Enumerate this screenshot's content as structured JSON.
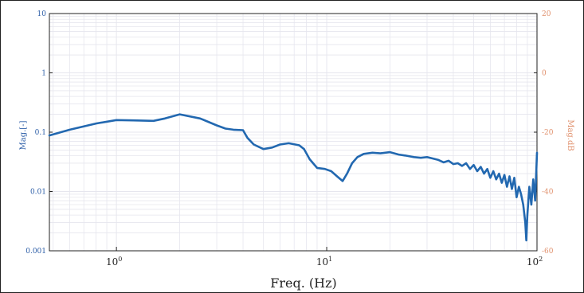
{
  "chart_data": {
    "type": "line",
    "title": "",
    "xlabel": "Freq. (Hz)",
    "ylabel_left": "Mag.[-]",
    "ylabel_right": "Mag.dB",
    "x_scale": "log",
    "y_scale_left": "log",
    "xlim": [
      0.48,
      100
    ],
    "ylim_left": [
      0.001,
      10
    ],
    "ylim_right": [
      -60,
      20
    ],
    "grid": true,
    "x_ticks": [
      {
        "value": 1,
        "base": "10",
        "exp": "0"
      },
      {
        "value": 10,
        "base": "10",
        "exp": "1"
      },
      {
        "value": 100,
        "base": "10",
        "exp": "2"
      }
    ],
    "y_ticks_left": [
      {
        "value": 10,
        "label": "10"
      },
      {
        "value": 1,
        "label": "1"
      },
      {
        "value": 0.1,
        "label": "0.1"
      },
      {
        "value": 0.01,
        "label": "0.01"
      },
      {
        "value": 0.001,
        "label": "0.001"
      }
    ],
    "y_ticks_right": [
      {
        "value": 20,
        "label": "20"
      },
      {
        "value": 0,
        "label": "0"
      },
      {
        "value": -20,
        "label": "-20"
      },
      {
        "value": -40,
        "label": "-40"
      },
      {
        "value": -60,
        "label": "-60"
      }
    ],
    "colors": {
      "series": "#2268b0",
      "left_axis": "#2e5fa8",
      "right_axis": "#e0906c",
      "grid": "#e6e6ee",
      "frame": "#222222"
    },
    "series": [
      {
        "x": [
          0.48,
          0.6,
          0.8,
          1.0,
          1.2,
          1.5,
          1.7,
          2.0,
          2.5,
          3.0,
          3.3,
          3.6,
          4.0,
          4.2,
          4.5,
          5.0,
          5.5,
          6.0,
          6.6,
          7.4,
          7.8,
          8.3,
          9.0,
          9.8,
          10.5,
          11.2,
          11.9,
          12.5,
          13.2,
          14.0,
          15.0,
          16.5,
          18.0,
          20.0,
          22.0,
          24.0,
          26.0,
          28.0,
          30.0,
          32.0,
          34.0,
          36.0,
          38.0,
          40.0,
          42.0,
          44.0,
          46.0,
          48.0,
          50.0,
          52.0,
          54.0,
          56.0,
          58.0,
          60.0,
          62.0,
          64.0,
          66.0,
          68.0,
          70.0,
          72.0,
          74.0,
          76.0,
          78.0,
          80.0,
          82.0,
          84.0,
          86.0,
          88.0,
          89.0,
          90.0,
          92.0,
          94.0,
          96.0,
          98.0,
          100.0
        ],
        "y": [
          0.088,
          0.11,
          0.14,
          0.16,
          0.158,
          0.155,
          0.17,
          0.2,
          0.17,
          0.13,
          0.115,
          0.11,
          0.108,
          0.08,
          0.062,
          0.052,
          0.055,
          0.062,
          0.065,
          0.06,
          0.052,
          0.035,
          0.025,
          0.024,
          0.022,
          0.018,
          0.015,
          0.02,
          0.03,
          0.038,
          0.043,
          0.045,
          0.044,
          0.046,
          0.042,
          0.04,
          0.038,
          0.037,
          0.038,
          0.036,
          0.034,
          0.031,
          0.033,
          0.029,
          0.03,
          0.027,
          0.03,
          0.024,
          0.028,
          0.022,
          0.026,
          0.02,
          0.024,
          0.017,
          0.022,
          0.016,
          0.02,
          0.014,
          0.019,
          0.012,
          0.018,
          0.011,
          0.017,
          0.008,
          0.012,
          0.009,
          0.006,
          0.003,
          0.0015,
          0.004,
          0.012,
          0.006,
          0.016,
          0.007,
          0.045
        ]
      }
    ]
  }
}
